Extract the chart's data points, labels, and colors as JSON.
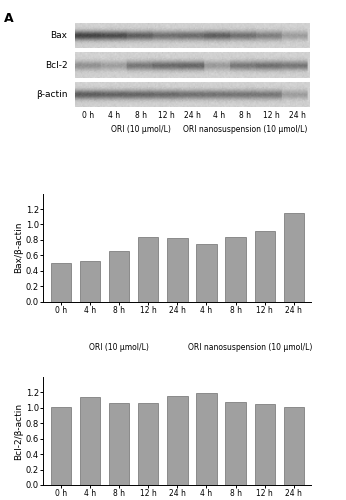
{
  "panel_label": "A",
  "blot_labels": [
    "Bax",
    "Bcl-2",
    "β-actin"
  ],
  "x_tick_labels": [
    "0 h",
    "4 h",
    "8 h",
    "12 h",
    "24 h",
    "4 h",
    "8 h",
    "12 h",
    "24 h"
  ],
  "x_group_labels": [
    "ORI (10 μmol/L)",
    "ORI nanosuspension (10 μmol/L)"
  ],
  "bax_values": [
    0.5,
    0.53,
    0.65,
    0.84,
    0.82,
    0.75,
    0.84,
    0.92,
    1.15
  ],
  "bcl2_values": [
    1.01,
    1.14,
    1.06,
    1.06,
    1.16,
    1.19,
    1.07,
    1.05,
    1.01
  ],
  "bax_ylabel": "Bax/β-actin",
  "bcl2_ylabel": "Bcl-2/β-actin",
  "bax_ylim": [
    0,
    1.4
  ],
  "bcl2_ylim": [
    0,
    1.4
  ],
  "bax_yticks": [
    0,
    0.2,
    0.4,
    0.6,
    0.8,
    1.0,
    1.2
  ],
  "bcl2_yticks": [
    0,
    0.2,
    0.4,
    0.6,
    0.8,
    1.0,
    1.2
  ],
  "bar_color": "#a0a0a0",
  "bar_edgecolor": "#707070",
  "background_color": "#ffffff"
}
